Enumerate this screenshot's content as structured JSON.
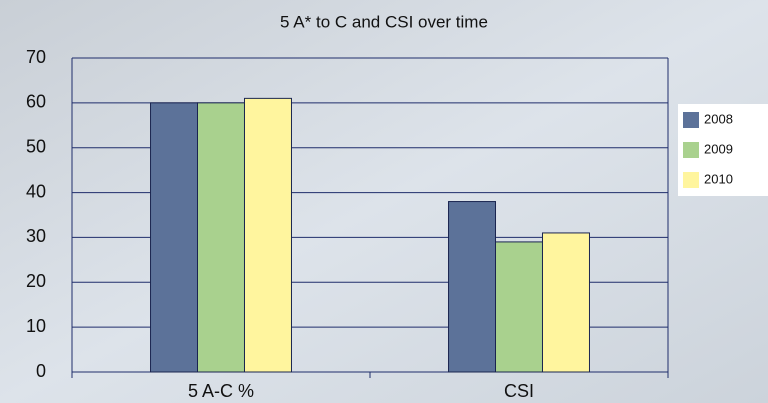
{
  "chart_data": {
    "type": "bar",
    "title": "5 A* to C and CSI over time",
    "categories": [
      "5 A-C %",
      "CSI"
    ],
    "series": [
      {
        "name": "2008",
        "color": "#5c7299",
        "values": [
          60,
          38
        ]
      },
      {
        "name": "2009",
        "color": "#a9d18e",
        "values": [
          60,
          29
        ]
      },
      {
        "name": "2010",
        "color": "#fff59e",
        "values": [
          61,
          31
        ]
      }
    ],
    "ylim": [
      0,
      70
    ],
    "yticks": [
      0,
      10,
      20,
      30,
      40,
      50,
      60,
      70
    ],
    "grid": true,
    "legend": "right"
  }
}
